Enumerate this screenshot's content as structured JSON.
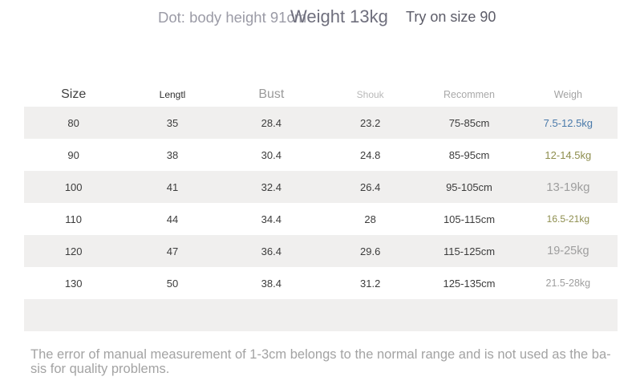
{
  "header": {
    "note": "Dot: body height 91cm",
    "weight": "Weight 13kg",
    "try_on": "Try on size 90"
  },
  "table": {
    "columns": {
      "size": "Size",
      "length": "Lengtl",
      "bust": "Bust",
      "shoulder": "Shouk",
      "recommend": "Recommen",
      "weight": "Weigh"
    },
    "rows": [
      {
        "size": "80",
        "length": "35",
        "bust": "28.4",
        "shoulder": "23.2",
        "recommend": "75-85cm",
        "weight": "7.5-12.5kg"
      },
      {
        "size": "90",
        "length": "38",
        "bust": "30.4",
        "shoulder": "24.8",
        "recommend": "85-95cm",
        "weight": "12-14.5kg"
      },
      {
        "size": "100",
        "length": "41",
        "bust": "32.4",
        "shoulder": "26.4",
        "recommend": "95-105cm",
        "weight": "13-19kg"
      },
      {
        "size": "110",
        "length": "44",
        "bust": "34.4",
        "shoulder": "28",
        "recommend": "105-115cm",
        "weight": "16.5-21kg"
      },
      {
        "size": "120",
        "length": "47",
        "bust": "36.4",
        "shoulder": "29.6",
        "recommend": "115-125cm",
        "weight": "19-25kg"
      },
      {
        "size": "130",
        "length": "50",
        "bust": "38.4",
        "shoulder": "31.2",
        "recommend": "125-135cm",
        "weight": "21.5-28kg"
      }
    ]
  },
  "footer": {
    "line1": "The error of manual measurement of 1-3cm belongs to the normal range and is not used as the ba-",
    "line2": "sis for quality problems."
  },
  "colors": {
    "weight_blue": "#4a7aaa",
    "weight_olive": "#8e8e4e",
    "weight_gray": "#9e9e9e",
    "row_alt_bg": "#f0efee",
    "title_muted": "#9b9ba6",
    "title_dark": "#6f6f7d"
  }
}
